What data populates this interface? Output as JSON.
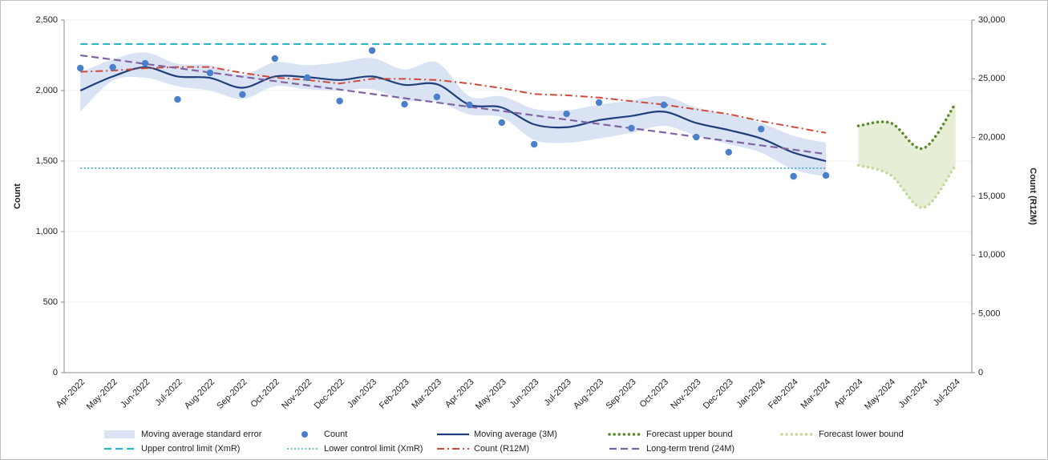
{
  "chart_data": {
    "type": "combo",
    "y_label": "Count",
    "y2_label": "Count (R12M)",
    "categories": [
      "Apr-2022",
      "May-2022",
      "Jun-2022",
      "Jul-2022",
      "Aug-2022",
      "Sep-2022",
      "Oct-2022",
      "Nov-2022",
      "Dec-2022",
      "Jan-2023",
      "Feb-2023",
      "Mar-2023",
      "Apr-2023",
      "May-2023",
      "Jun-2023",
      "Jul-2023",
      "Aug-2023",
      "Sep-2023",
      "Oct-2023",
      "Nov-2023",
      "Dec-2023",
      "Jan-2024",
      "Feb-2024",
      "Mar-2024",
      "Apr-2024",
      "May-2024",
      "Jun-2024",
      "Jul-2024"
    ],
    "ylim": [
      0,
      2500
    ],
    "yticks": [
      0,
      500,
      {
        "value": 1000,
        "label": "1,000"
      },
      {
        "value": 1500,
        "label": "1,500"
      },
      {
        "value": 2000,
        "label": "2,000"
      },
      {
        "value": 2500,
        "label": "2,500"
      }
    ],
    "y2lim": [
      0,
      30000
    ],
    "y2ticks": [
      0,
      {
        "value": 5000,
        "label": "5,000"
      },
      {
        "value": 10000,
        "label": "10,000"
      },
      {
        "value": 15000,
        "label": "15,000"
      },
      {
        "value": 20000,
        "label": "20,000"
      },
      {
        "value": 25000,
        "label": "25,000"
      },
      {
        "value": 30000,
        "label": "30,000"
      }
    ],
    "grid": true,
    "series": [
      {
        "name": "Moving average standard error",
        "type": "band",
        "color": "#dae3f3",
        "lower": [
          1850,
          2070,
          2090,
          2030,
          2000,
          1940,
          2030,
          2010,
          2000,
          2010,
          1930,
          1920,
          1830,
          1810,
          1650,
          1630,
          1660,
          1700,
          1750,
          1680,
          1620,
          1560,
          1440,
          1390,
          null,
          null,
          null,
          null
        ],
        "upper": [
          2130,
          2220,
          2270,
          2190,
          2180,
          2110,
          2200,
          2180,
          2200,
          2230,
          2150,
          2200,
          1960,
          1960,
          1870,
          1860,
          1900,
          1930,
          1960,
          1880,
          1830,
          1770,
          1680,
          1630,
          null,
          null,
          null,
          null
        ]
      },
      {
        "name": "Count",
        "type": "scatter",
        "color": "#4a7fcb",
        "values": [
          2159,
          2165,
          2193,
          1937,
          2125,
          1972,
          2227,
          2091,
          1926,
          2284,
          1903,
          1955,
          1898,
          1773,
          1619,
          1835,
          1915,
          1733,
          1898,
          1670,
          1563,
          1727,
          1392,
          1398,
          null,
          null,
          null,
          null
        ]
      },
      {
        "name": "Moving average (3M)",
        "type": "line",
        "color": "#1f3f7a",
        "line_style": "solid",
        "smooth": true,
        "values": [
          2000,
          2100,
          2165,
          2100,
          2090,
          2020,
          2100,
          2095,
          2075,
          2100,
          2040,
          2045,
          1900,
          1880,
          1760,
          1740,
          1790,
          1820,
          1850,
          1770,
          1720,
          1660,
          1560,
          1500,
          null,
          null,
          null,
          null
        ]
      },
      {
        "name": "Forecast upper bound",
        "type": "line",
        "color": "#5a8a2a",
        "line_style": "dotted",
        "smooth": true,
        "fill_color": "#e6eed6",
        "values": [
          null,
          null,
          null,
          null,
          null,
          null,
          null,
          null,
          null,
          null,
          null,
          null,
          null,
          null,
          null,
          null,
          null,
          null,
          null,
          null,
          null,
          null,
          null,
          null,
          1750,
          1770,
          1590,
          1910
        ]
      },
      {
        "name": "Forecast lower bound",
        "type": "line",
        "color": "#c4d99a",
        "line_style": "dotted",
        "smooth": true,
        "values": [
          null,
          null,
          null,
          null,
          null,
          null,
          null,
          null,
          null,
          null,
          null,
          null,
          null,
          null,
          null,
          null,
          null,
          null,
          null,
          null,
          null,
          null,
          null,
          null,
          1470,
          1400,
          1170,
          1470
        ]
      },
      {
        "name": "Upper control limit (XmR)",
        "type": "line",
        "color": "#2fb4c8",
        "line_style": "dashed",
        "values": [
          2330,
          2330,
          2330,
          2330,
          2330,
          2330,
          2330,
          2330,
          2330,
          2330,
          2330,
          2330,
          2330,
          2330,
          2330,
          2330,
          2330,
          2330,
          2330,
          2330,
          2330,
          2330,
          2330,
          2330,
          null,
          null,
          null,
          null
        ]
      },
      {
        "name": "Lower control limit (XmR)",
        "type": "line",
        "color": "#3aa8d0",
        "line_style": "fine-dotted",
        "values": [
          1450,
          1450,
          1450,
          1450,
          1450,
          1450,
          1450,
          1450,
          1450,
          1450,
          1450,
          1450,
          1450,
          1450,
          1450,
          1450,
          1450,
          1450,
          1450,
          1450,
          1450,
          1450,
          1450,
          1450,
          null,
          null,
          null,
          null
        ]
      },
      {
        "name": "Count (R12M)",
        "type": "line",
        "axis": "y2",
        "color": "#d04a3c",
        "line_style": "dashdot",
        "values": [
          25600,
          25700,
          25900,
          26000,
          26000,
          25500,
          25100,
          24900,
          24600,
          25000,
          25000,
          24900,
          24600,
          24200,
          23700,
          23600,
          23400,
          23100,
          22800,
          22400,
          22000,
          21400,
          20900,
          20400,
          null,
          null,
          null,
          null
        ]
      },
      {
        "name": "Long-term trend (24M)",
        "type": "line",
        "color": "#8064a2",
        "line_style": "dashed",
        "values": [
          2250,
          2220,
          2189,
          2159,
          2128,
          2098,
          2067,
          2037,
          2007,
          1976,
          1946,
          1915,
          1885,
          1855,
          1824,
          1794,
          1763,
          1733,
          1703,
          1672,
          1642,
          1611,
          1581,
          1550,
          null,
          null,
          null,
          null
        ]
      }
    ]
  }
}
